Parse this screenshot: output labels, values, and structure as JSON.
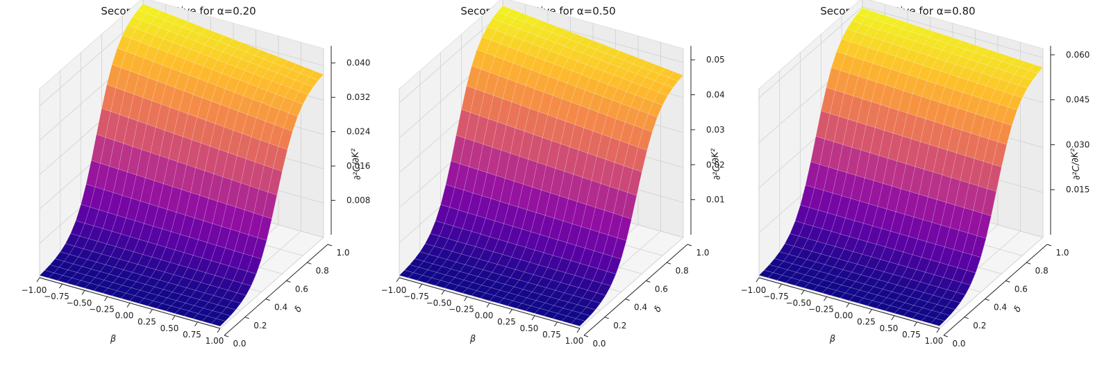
{
  "chart_data": [
    {
      "type": "surface",
      "title": "Second Derivative for α=0.20",
      "xlabel": "β",
      "ylabel": "δ",
      "zlabel": "∂²C/∂K²",
      "colormap": "plasma",
      "xlim": [
        -1.0,
        1.0
      ],
      "ylim": [
        0.0,
        1.0
      ],
      "zlim": [
        0.0,
        0.044
      ],
      "x_ticks": [
        "−1.00",
        "−0.75",
        "−0.50",
        "−0.25",
        "0.00",
        "0.25",
        "0.50",
        "0.75",
        "1.00"
      ],
      "x_tick_values": [
        -1.0,
        -0.75,
        -0.5,
        -0.25,
        0.0,
        0.25,
        0.5,
        0.75,
        1.0
      ],
      "y_ticks": [
        "0.0",
        "0.2",
        "0.4",
        "0.6",
        "0.8",
        "1.0"
      ],
      "y_tick_values": [
        0.0,
        0.2,
        0.4,
        0.6,
        0.8,
        1.0
      ],
      "z_ticks": [
        "0.008",
        "0.016",
        "0.024",
        "0.032",
        "0.040"
      ],
      "z_tick_values": [
        0.008,
        0.016,
        0.024,
        0.032,
        0.04
      ],
      "surface": {
        "z_min": 0.0003,
        "z_max_far": 0.0385,
        "z_max_near": 0.0432,
        "transition_delta": 0.55,
        "steepness": 9.5
      }
    },
    {
      "type": "surface",
      "title": "Second Derivative for α=0.50",
      "xlabel": "β",
      "ylabel": "δ",
      "zlabel": "∂²C/∂K²",
      "colormap": "plasma",
      "xlim": [
        -1.0,
        1.0
      ],
      "ylim": [
        0.0,
        1.0
      ],
      "zlim": [
        0.0,
        0.054
      ],
      "x_ticks": [
        "−1.00",
        "−0.75",
        "−0.50",
        "−0.25",
        "0.00",
        "0.25",
        "0.50",
        "0.75",
        "1.00"
      ],
      "x_tick_values": [
        -1.0,
        -0.75,
        -0.5,
        -0.25,
        0.0,
        0.25,
        0.5,
        0.75,
        1.0
      ],
      "y_ticks": [
        "0.0",
        "0.2",
        "0.4",
        "0.6",
        "0.8",
        "1.0"
      ],
      "y_tick_values": [
        0.0,
        0.2,
        0.4,
        0.6,
        0.8,
        1.0
      ],
      "z_ticks": [
        "0.01",
        "0.02",
        "0.03",
        "0.04",
        "0.05"
      ],
      "z_tick_values": [
        0.01,
        0.02,
        0.03,
        0.04,
        0.05
      ],
      "surface": {
        "z_min": 0.0004,
        "z_max_far": 0.047,
        "z_max_near": 0.0525,
        "transition_delta": 0.55,
        "steepness": 9.5
      }
    },
    {
      "type": "surface",
      "title": "Second Derivative for α=0.80",
      "xlabel": "β",
      "ylabel": "δ",
      "zlabel": "∂²C/∂K²",
      "colormap": "plasma",
      "xlim": [
        -1.0,
        1.0
      ],
      "ylim": [
        0.0,
        1.0
      ],
      "zlim": [
        0.0,
        0.063
      ],
      "x_ticks": [
        "−1.00",
        "−0.75",
        "−0.50",
        "−0.25",
        "0.00",
        "0.25",
        "0.50",
        "0.75",
        "1.00"
      ],
      "x_tick_values": [
        -1.0,
        -0.75,
        -0.5,
        -0.25,
        0.0,
        0.25,
        0.5,
        0.75,
        1.0
      ],
      "y_ticks": [
        "0.0",
        "0.2",
        "0.4",
        "0.6",
        "0.8",
        "1.0"
      ],
      "y_tick_values": [
        0.0,
        0.2,
        0.4,
        0.6,
        0.8,
        1.0
      ],
      "z_ticks": [
        "0.015",
        "0.030",
        "0.045",
        "0.060"
      ],
      "z_tick_values": [
        0.015,
        0.03,
        0.045,
        0.06
      ],
      "surface": {
        "z_min": 0.0005,
        "z_max_far": 0.0575,
        "z_max_near": 0.0605,
        "transition_delta": 0.55,
        "steepness": 9.5
      }
    }
  ]
}
